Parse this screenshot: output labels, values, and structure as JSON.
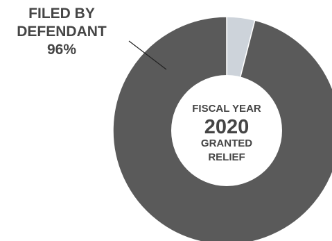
{
  "chart_data": {
    "type": "pie",
    "title": "",
    "center_label": {
      "line1": "FISCAL YEAR",
      "year": "2020",
      "line3": "GRANTED",
      "line4": "RELIEF"
    },
    "slices": [
      {
        "label": "FILED BY DEFENDANT",
        "value": 96,
        "percent_label": "96%",
        "color": "#5a5a5a"
      },
      {
        "label": "",
        "value": 4,
        "percent_label": "",
        "color": "#cdd3da"
      }
    ],
    "callout": {
      "line1": "FILED BY",
      "line2": "DEFENDANT",
      "line3": "96%"
    }
  }
}
